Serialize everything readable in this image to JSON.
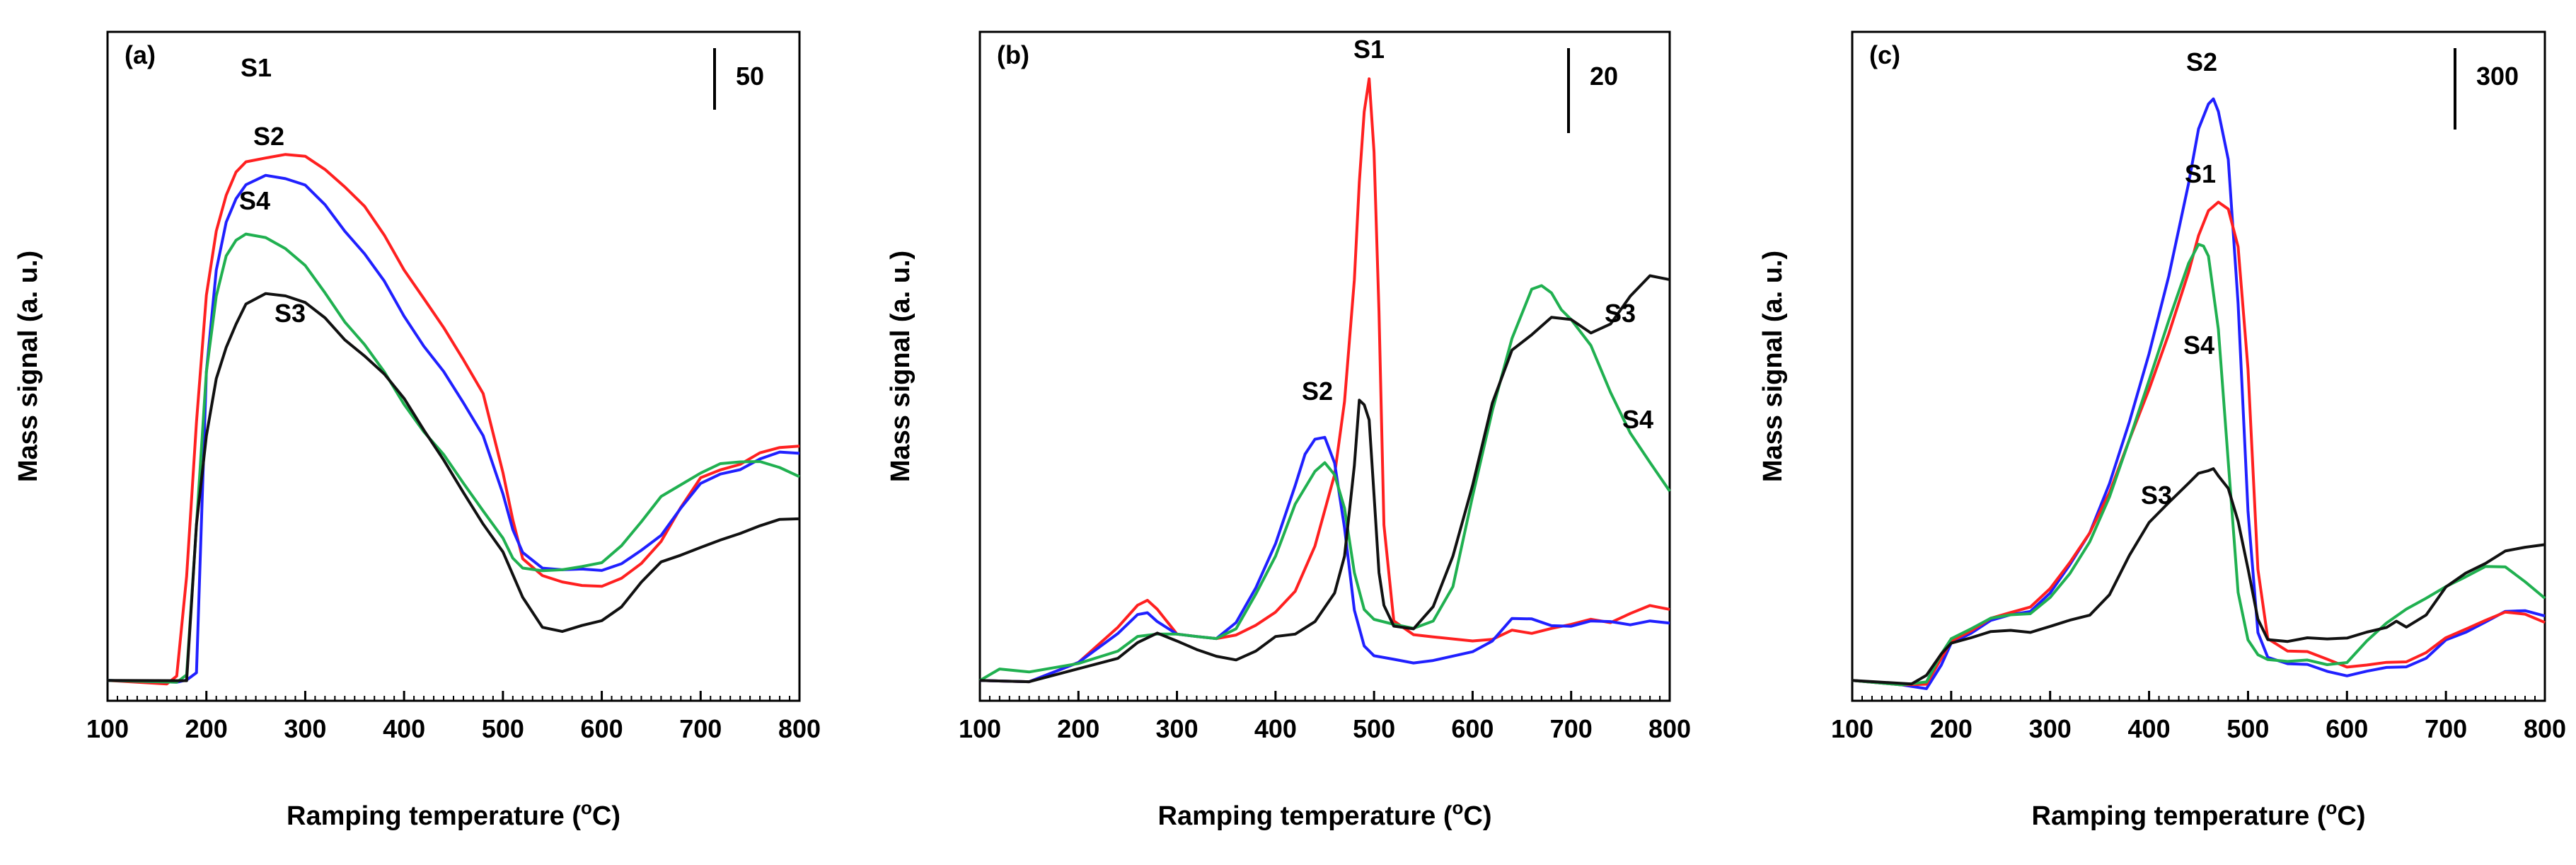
{
  "chart_data": [
    {
      "type": "line",
      "panel_label": "(a)",
      "xlabel": "Ramping temperature",
      "xlabel_unit_prefix": "(",
      "xlabel_unit_sup": "o",
      "xlabel_unit_suffix": "C)",
      "ylabel": "Mass signal (a. u.)",
      "xlim": [
        100,
        800
      ],
      "ylim": [
        0,
        240
      ],
      "x_ticks": [
        100,
        200,
        300,
        400,
        500,
        600,
        700,
        800
      ],
      "scale_bar": {
        "label": "50",
        "value": 50
      },
      "series": [
        {
          "name": "S1",
          "color": "#ff2020",
          "x": [
            100,
            160,
            170,
            180,
            190,
            200,
            210,
            220,
            230,
            240,
            260,
            280,
            300,
            320,
            340,
            360,
            380,
            400,
            420,
            440,
            460,
            480,
            500,
            510,
            520,
            540,
            560,
            580,
            600,
            620,
            640,
            660,
            680,
            700,
            720,
            740,
            760,
            780,
            800
          ],
          "y": [
            0,
            0,
            2,
            40,
            100,
            150,
            175,
            188,
            196,
            200,
            203,
            204,
            202,
            198,
            192,
            183,
            172,
            160,
            148,
            136,
            125,
            112,
            80,
            62,
            48,
            42,
            38,
            37,
            38,
            40,
            45,
            55,
            68,
            78,
            82,
            85,
            88,
            90,
            92
          ]
        },
        {
          "name": "S2",
          "color": "#2020ff",
          "x": [
            100,
            170,
            180,
            190,
            200,
            210,
            220,
            230,
            240,
            260,
            280,
            300,
            320,
            340,
            360,
            380,
            400,
            420,
            440,
            460,
            480,
            500,
            510,
            520,
            540,
            560,
            580,
            600,
            620,
            640,
            660,
            680,
            700,
            720,
            740,
            760,
            780,
            800
          ],
          "y": [
            0,
            0,
            0,
            3,
            120,
            160,
            178,
            186,
            191,
            196,
            195,
            191,
            184,
            175,
            165,
            154,
            142,
            130,
            119,
            108,
            96,
            72,
            58,
            50,
            45,
            43,
            43,
            44,
            46,
            50,
            57,
            68,
            76,
            80,
            83,
            86,
            88,
            89
          ]
        },
        {
          "name": "S4",
          "color": "#20b050",
          "x": [
            100,
            170,
            180,
            190,
            200,
            210,
            220,
            230,
            240,
            260,
            280,
            300,
            320,
            340,
            360,
            380,
            400,
            420,
            440,
            460,
            480,
            500,
            510,
            520,
            540,
            560,
            580,
            600,
            620,
            640,
            660,
            680,
            700,
            720,
            740,
            760,
            780,
            800
          ],
          "y": [
            0,
            0,
            2,
            60,
            120,
            150,
            165,
            170,
            172,
            172,
            168,
            160,
            150,
            140,
            130,
            119,
            108,
            97,
            87,
            77,
            67,
            55,
            47,
            44,
            44,
            43,
            44,
            47,
            53,
            61,
            72,
            77,
            80,
            84,
            86,
            85,
            82,
            80
          ]
        },
        {
          "name": "S3",
          "color": "#111111",
          "x": [
            100,
            180,
            190,
            200,
            210,
            220,
            230,
            240,
            260,
            280,
            300,
            320,
            340,
            360,
            380,
            400,
            420,
            440,
            460,
            480,
            500,
            520,
            540,
            560,
            580,
            600,
            620,
            640,
            660,
            680,
            700,
            720,
            740,
            760,
            780,
            800
          ],
          "y": [
            0,
            0,
            60,
            95,
            118,
            130,
            138,
            145,
            150,
            150,
            146,
            140,
            133,
            126,
            118,
            110,
            98,
            85,
            73,
            62,
            50,
            32,
            22,
            20,
            21,
            24,
            30,
            38,
            46,
            50,
            52,
            54,
            58,
            61,
            62,
            63
          ]
        }
      ],
      "annotations": [
        {
          "text": "S1",
          "series": "S1"
        },
        {
          "text": "S2",
          "series": "S2"
        },
        {
          "text": "S4",
          "series": "S4"
        },
        {
          "text": "S3",
          "series": "S3"
        }
      ]
    },
    {
      "type": "line",
      "panel_label": "(b)",
      "xlabel": "Ramping temperature",
      "xlabel_unit_prefix": "(",
      "xlabel_unit_sup": "o",
      "xlabel_unit_suffix": "C)",
      "ylabel": "Mass signal (a. u.)",
      "xlim": [
        100,
        800
      ],
      "ylim": [
        0,
        100
      ],
      "x_ticks": [
        100,
        200,
        300,
        400,
        500,
        600,
        700,
        800
      ],
      "scale_bar": {
        "label": "20",
        "value": 20
      },
      "series": [
        {
          "name": "S1",
          "color": "#ff2020",
          "x": [
            100,
            150,
            200,
            240,
            260,
            270,
            280,
            300,
            320,
            340,
            360,
            380,
            400,
            420,
            440,
            460,
            470,
            480,
            485,
            490,
            495,
            500,
            505,
            510,
            520,
            540,
            560,
            600,
            620,
            640,
            660,
            680,
            700,
            720,
            740,
            760,
            780,
            800
          ],
          "y": [
            0,
            0.5,
            3,
            9,
            12,
            13,
            12,
            8,
            7,
            7,
            8,
            9,
            11,
            15,
            22,
            33,
            45,
            65,
            80,
            92,
            97,
            85,
            60,
            25,
            10,
            8,
            7,
            7,
            7,
            8,
            8,
            9,
            9,
            10,
            10,
            11,
            12,
            12
          ]
        },
        {
          "name": "S2",
          "color": "#2020ff",
          "x": [
            100,
            150,
            200,
            240,
            260,
            270,
            280,
            300,
            320,
            340,
            360,
            380,
            400,
            420,
            430,
            440,
            450,
            460,
            470,
            480,
            490,
            500,
            520,
            540,
            560,
            600,
            620,
            640,
            660,
            680,
            700,
            720,
            740,
            760,
            780,
            800
          ],
          "y": [
            0,
            0.5,
            3,
            8,
            10.5,
            11,
            10,
            8,
            7,
            7,
            10,
            15,
            22,
            32,
            37,
            39,
            39,
            35,
            25,
            12,
            6,
            4,
            3.5,
            3.5,
            3.5,
            5,
            7,
            10,
            10,
            9.5,
            9,
            9.5,
            10,
            9.5,
            9.5,
            9.5
          ]
        },
        {
          "name": "S4",
          "color": "#20b050",
          "x": [
            100,
            120,
            150,
            200,
            240,
            260,
            280,
            300,
            320,
            340,
            360,
            380,
            400,
            420,
            440,
            450,
            460,
            470,
            480,
            490,
            500,
            520,
            540,
            560,
            580,
            600,
            620,
            640,
            660,
            670,
            680,
            690,
            700,
            720,
            740,
            760,
            780,
            800
          ],
          "y": [
            0,
            2,
            2,
            3,
            5,
            7,
            8,
            8,
            7,
            7,
            9,
            14,
            20,
            29,
            34,
            35,
            33,
            28,
            18,
            12,
            10,
            9,
            9,
            10,
            15,
            30,
            44,
            55,
            63,
            64,
            63,
            60,
            58,
            54,
            47,
            40,
            35,
            31
          ]
        },
        {
          "name": "S3",
          "color": "#111111",
          "x": [
            100,
            150,
            200,
            240,
            260,
            280,
            300,
            320,
            340,
            360,
            380,
            400,
            420,
            440,
            460,
            470,
            480,
            485,
            490,
            495,
            500,
            505,
            510,
            520,
            540,
            560,
            580,
            600,
            620,
            640,
            660,
            680,
            700,
            720,
            740,
            760,
            780,
            800
          ],
          "y": [
            0,
            0.5,
            2,
            4,
            6,
            8,
            7,
            5,
            4,
            4,
            5,
            7,
            8,
            10,
            14,
            20,
            35,
            45,
            45,
            42,
            30,
            18,
            12,
            9,
            9,
            12,
            20,
            32,
            45,
            53,
            56,
            59,
            58,
            56,
            58,
            62,
            65,
            65
          ]
        }
      ],
      "annotations": [
        {
          "text": "S1",
          "series": "S1"
        },
        {
          "text": "S2",
          "series": "S2"
        },
        {
          "text": "S3",
          "series": "S3"
        },
        {
          "text": "S4",
          "series": "S4"
        }
      ]
    },
    {
      "type": "line",
      "panel_label": "(c)",
      "xlabel": "Ramping temperature",
      "xlabel_unit_prefix": "(",
      "xlabel_unit_sup": "o",
      "xlabel_unit_suffix": "C)",
      "ylabel": "Mass signal (a. u.)",
      "xlim": [
        100,
        800
      ],
      "ylim": [
        0,
        1400
      ],
      "x_ticks": [
        100,
        200,
        300,
        400,
        500,
        600,
        700,
        800
      ],
      "scale_bar": {
        "label": "300",
        "value": 300
      },
      "series": [
        {
          "name": "S2",
          "color": "#2020ff",
          "x": [
            100,
            150,
            175,
            190,
            200,
            220,
            240,
            260,
            280,
            300,
            320,
            340,
            360,
            380,
            400,
            420,
            440,
            450,
            460,
            465,
            470,
            480,
            490,
            500,
            510,
            520,
            540,
            560,
            580,
            600,
            620,
            640,
            660,
            680,
            700,
            720,
            740,
            760,
            780,
            800
          ],
          "y": [
            0,
            0,
            -10,
            35,
            90,
            115,
            135,
            150,
            165,
            200,
            260,
            340,
            450,
            580,
            740,
            920,
            1120,
            1240,
            1300,
            1310,
            1290,
            1180,
            850,
            380,
            110,
            60,
            45,
            35,
            25,
            20,
            22,
            30,
            40,
            55,
            90,
            115,
            140,
            155,
            160,
            155
          ]
        },
        {
          "name": "S1",
          "color": "#ff2020",
          "x": [
            100,
            150,
            175,
            190,
            200,
            220,
            240,
            260,
            280,
            300,
            320,
            340,
            360,
            380,
            400,
            420,
            440,
            450,
            460,
            470,
            480,
            490,
            500,
            510,
            520,
            540,
            560,
            580,
            600,
            620,
            640,
            660,
            680,
            700,
            720,
            740,
            760,
            780,
            800
          ],
          "y": [
            0,
            0,
            0,
            50,
            95,
            120,
            140,
            155,
            175,
            210,
            265,
            340,
            430,
            540,
            660,
            790,
            920,
            1000,
            1060,
            1085,
            1070,
            980,
            700,
            250,
            100,
            75,
            65,
            50,
            40,
            38,
            40,
            50,
            70,
            95,
            120,
            145,
            155,
            150,
            140
          ]
        },
        {
          "name": "S4",
          "color": "#20b050",
          "x": [
            100,
            150,
            175,
            190,
            200,
            220,
            240,
            260,
            280,
            300,
            320,
            340,
            360,
            380,
            400,
            420,
            440,
            450,
            455,
            460,
            470,
            480,
            490,
            500,
            510,
            520,
            540,
            560,
            580,
            600,
            620,
            640,
            660,
            680,
            700,
            720,
            740,
            760,
            780,
            800
          ],
          "y": [
            0,
            0,
            5,
            60,
            100,
            125,
            140,
            150,
            160,
            190,
            240,
            320,
            420,
            540,
            680,
            820,
            940,
            980,
            985,
            960,
            800,
            500,
            200,
            90,
            60,
            55,
            50,
            45,
            40,
            50,
            90,
            130,
            170,
            190,
            210,
            240,
            265,
            255,
            225,
            195
          ]
        },
        {
          "name": "S3",
          "color": "#111111",
          "x": [
            100,
            160,
            175,
            190,
            200,
            220,
            240,
            260,
            280,
            300,
            320,
            340,
            360,
            380,
            400,
            420,
            440,
            450,
            460,
            465,
            470,
            480,
            490,
            500,
            510,
            520,
            540,
            560,
            580,
            600,
            620,
            640,
            650,
            660,
            680,
            700,
            720,
            740,
            760,
            780,
            800
          ],
          "y": [
            0,
            0,
            20,
            60,
            90,
            105,
            110,
            115,
            118,
            125,
            135,
            155,
            200,
            280,
            360,
            410,
            445,
            465,
            475,
            478,
            470,
            440,
            360,
            250,
            140,
            100,
            95,
            95,
            98,
            105,
            110,
            120,
            140,
            130,
            150,
            210,
            250,
            270,
            290,
            305,
            315
          ]
        }
      ],
      "annotations": [
        {
          "text": "S2",
          "series": "S2"
        },
        {
          "text": "S1",
          "series": "S1"
        },
        {
          "text": "S4",
          "series": "S4"
        },
        {
          "text": "S3",
          "series": "S3"
        }
      ]
    }
  ]
}
